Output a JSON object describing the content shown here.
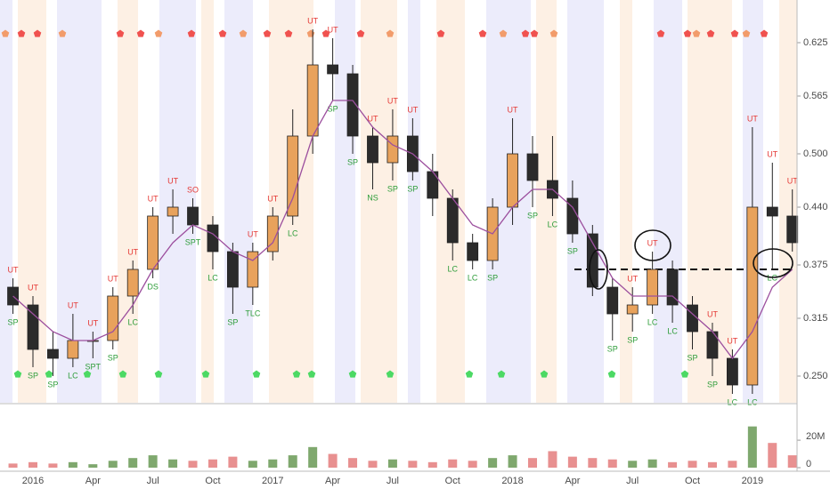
{
  "chart_data": {
    "type": "candlestick",
    "categories": [
      null,
      "2016",
      null,
      null,
      "Apr",
      null,
      null,
      "Jul",
      null,
      null,
      "Oct",
      null,
      null,
      "2017",
      null,
      null,
      "Apr",
      null,
      null,
      "Jul",
      null,
      null,
      "Oct",
      null,
      null,
      "2018",
      null,
      null,
      "Apr",
      null,
      null,
      "Jul",
      null,
      null,
      "Oct",
      null,
      null,
      "2019",
      null,
      null
    ],
    "open": [
      0.35,
      0.33,
      0.28,
      0.27,
      0.29,
      0.29,
      0.34,
      0.37,
      0.43,
      0.44,
      0.42,
      0.39,
      0.35,
      0.39,
      0.43,
      0.52,
      0.6,
      0.59,
      0.52,
      0.49,
      0.52,
      0.48,
      0.45,
      0.4,
      0.38,
      0.44,
      0.5,
      0.47,
      0.45,
      0.41,
      0.35,
      0.32,
      0.33,
      0.37,
      0.33,
      0.3,
      0.27,
      0.24,
      0.44,
      0.43
    ],
    "high": [
      0.36,
      0.34,
      0.3,
      0.32,
      0.3,
      0.35,
      0.38,
      0.44,
      0.46,
      0.45,
      0.43,
      0.4,
      0.4,
      0.44,
      0.55,
      0.64,
      0.63,
      0.6,
      0.53,
      0.55,
      0.54,
      0.5,
      0.46,
      0.41,
      0.45,
      0.54,
      0.52,
      0.52,
      0.47,
      0.42,
      0.36,
      0.35,
      0.39,
      0.38,
      0.34,
      0.31,
      0.28,
      0.53,
      0.49,
      0.46
    ],
    "low": [
      0.32,
      0.26,
      0.25,
      0.26,
      0.27,
      0.28,
      0.32,
      0.36,
      0.41,
      0.41,
      0.37,
      0.32,
      0.33,
      0.38,
      0.42,
      0.5,
      0.56,
      0.5,
      0.46,
      0.47,
      0.47,
      0.43,
      0.38,
      0.37,
      0.37,
      0.42,
      0.44,
      0.43,
      0.4,
      0.34,
      0.29,
      0.3,
      0.32,
      0.31,
      0.28,
      0.25,
      0.23,
      0.23,
      0.37,
      0.39
    ],
    "close": [
      0.33,
      0.28,
      0.27,
      0.29,
      0.29,
      0.34,
      0.37,
      0.43,
      0.44,
      0.42,
      0.39,
      0.35,
      0.39,
      0.43,
      0.52,
      0.6,
      0.59,
      0.52,
      0.49,
      0.52,
      0.48,
      0.45,
      0.4,
      0.38,
      0.44,
      0.5,
      0.47,
      0.45,
      0.41,
      0.35,
      0.32,
      0.33,
      0.37,
      0.33,
      0.3,
      0.27,
      0.24,
      0.44,
      0.43,
      0.4
    ],
    "moving_average": [
      0.34,
      0.32,
      0.3,
      0.29,
      0.29,
      0.3,
      0.33,
      0.37,
      0.4,
      0.42,
      0.41,
      0.39,
      0.38,
      0.4,
      0.45,
      0.52,
      0.56,
      0.56,
      0.53,
      0.51,
      0.5,
      0.48,
      0.45,
      0.42,
      0.41,
      0.44,
      0.46,
      0.46,
      0.44,
      0.4,
      0.36,
      0.34,
      0.34,
      0.34,
      0.32,
      0.3,
      0.27,
      0.3,
      0.35,
      0.37
    ],
    "volume": [
      3000000,
      4000000,
      3000000,
      4000000,
      2500000,
      5000000,
      7000000,
      9000000,
      6000000,
      5000000,
      6000000,
      8000000,
      5000000,
      6000000,
      9000000,
      15000000,
      10000000,
      7000000,
      5000000,
      6000000,
      5000000,
      4000000,
      6000000,
      5000000,
      7000000,
      9000000,
      7000000,
      12000000,
      8000000,
      7000000,
      6000000,
      5000000,
      6000000,
      4000000,
      5000000,
      4000000,
      5000000,
      30000000,
      18000000,
      9000000
    ],
    "top_signals": [
      "UT",
      "UT",
      null,
      "UT",
      "UT",
      "UT",
      "UT",
      "UT",
      "UT",
      "SO",
      null,
      null,
      "UT",
      "UT",
      null,
      "UT",
      "UT",
      null,
      "UT",
      "UT",
      "UT",
      null,
      null,
      null,
      null,
      "UT",
      null,
      null,
      null,
      null,
      null,
      "UT",
      "UT",
      null,
      null,
      "UT",
      "UT",
      "UT",
      "UT",
      "UT"
    ],
    "bottom_signals": [
      "SP",
      "SP",
      "SP",
      "LC",
      "SPT",
      "SP",
      "LC",
      "DS",
      null,
      "SPT",
      "LC",
      "SP",
      "TLC",
      null,
      "LC",
      null,
      "SP",
      "SP",
      "NS",
      "SP",
      "SP",
      null,
      "LC",
      "LC",
      "SP",
      null,
      "SP",
      "LC",
      "SP",
      null,
      "SP",
      "SP",
      "LC",
      "LC",
      "SP",
      "SP",
      "LC",
      "LC",
      "LC",
      null
    ],
    "up_color": "#e8a25c",
    "down_color": "#2b2b2b",
    "ma_color": "#9c4f9e",
    "top_signal_color": "#e53935",
    "bottom_signal_color": "#2e9d3a",
    "volume_up_color": "#7fa86e",
    "volume_down_color": "#e89090",
    "hline": 0.37,
    "ylim": [
      0.22,
      0.673
    ],
    "yticks": [
      {
        "value": 0.25,
        "label": "0.250"
      },
      {
        "value": 0.315,
        "label": "0.315"
      },
      {
        "value": 0.375,
        "label": "0.375"
      },
      {
        "value": 0.44,
        "label": "0.440"
      },
      {
        "value": 0.5,
        "label": "0.500"
      },
      {
        "value": 0.565,
        "label": "0.565"
      },
      {
        "value": 0.625,
        "label": "0.625"
      }
    ],
    "volume_ylim": [
      0,
      44000000
    ],
    "volume_ticks": [
      0,
      {
        "value": 20000000,
        "label": "20M"
      }
    ],
    "grid": false
  }
}
